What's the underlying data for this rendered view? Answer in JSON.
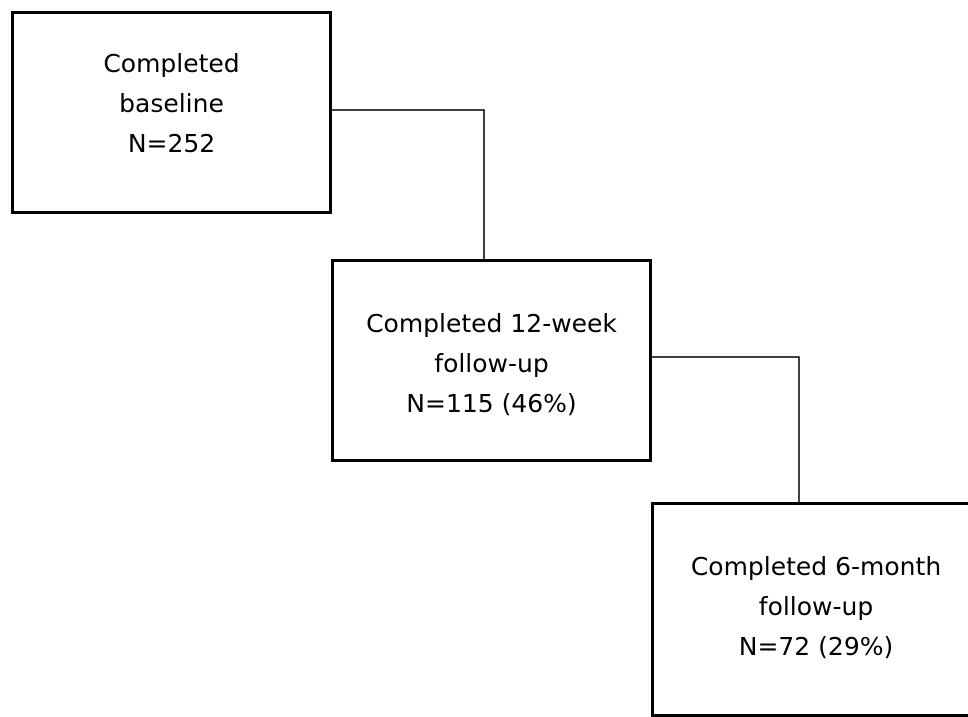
{
  "boxes": {
    "baseline": {
      "line1": "Completed",
      "line2": "baseline",
      "line3": "N=252"
    },
    "week12": {
      "line1": "Completed 12-week",
      "line2": "follow-up",
      "line3": "N=115 (46%)"
    },
    "month6": {
      "line1": "Completed 6-month",
      "line2": "follow-up",
      "line3": "N=72 (29%)"
    }
  },
  "colors": {
    "border": "#000000",
    "background": "#ffffff"
  }
}
